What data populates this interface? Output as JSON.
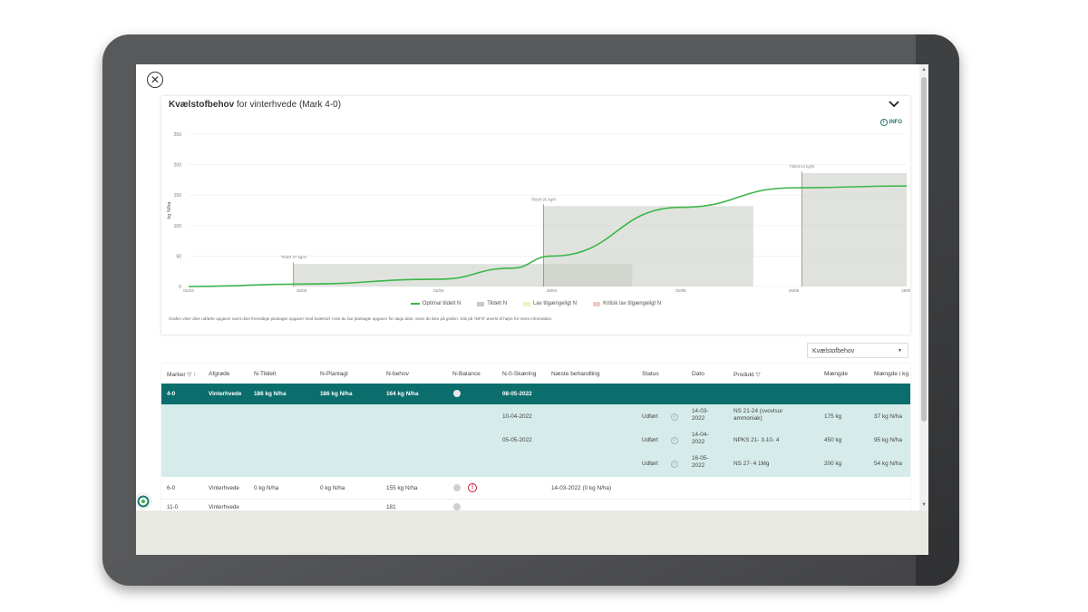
{
  "card": {
    "title_bold": "Kvælstofbehov",
    "title_rest": " for vinterhvede (Mark 4-0)",
    "info_label": "INFO",
    "footnote": "Grafen viser dine udførte opgaver samt dine fremtidige planlagte opgaver med kvælstof. Hvis du har planlagte opgaver for dags dato, vises de ikke på grafen. Klik på 'INFO' øverst til højre for mere information."
  },
  "chart_data": {
    "type": "line",
    "ylabel": "kg N/ha",
    "ylim": [
      0,
      250
    ],
    "yticks": [
      "0",
      "50",
      "100",
      "150",
      "200",
      "250"
    ],
    "x_ticks": [
      "01/03",
      "15/03",
      "01/04",
      "15/04",
      "01/05",
      "15/05",
      "29/05"
    ],
    "series": [
      {
        "name": "Optimal tildelt N",
        "x": [
          "01/03",
          "15/03",
          "01/04",
          "10/04",
          "15/04",
          "01/05",
          "15/05",
          "29/05"
        ],
        "y": [
          0,
          4,
          12,
          30,
          50,
          130,
          162,
          165
        ]
      }
    ],
    "annotations": [
      {
        "x": "14/03",
        "text": "Tildelt 37 kg/N",
        "value": 37
      },
      {
        "x": "14/04",
        "text": "Tildelt 95 kg/N",
        "value": 132
      },
      {
        "x": "16/05",
        "text": "Tildelt 54 kg/N",
        "value": 186
      }
    ],
    "legend": [
      "Optimal tildelt N",
      "Tildelt N",
      "Lav tilgængeligt N",
      "Kritisk lav tilgængeligt N"
    ],
    "colors": {
      "line": "#3bb54a",
      "tildelt": "#c7ccc1",
      "lav": "#f3efc5",
      "kritisk": "#f2c8c2"
    }
  },
  "dropdown": {
    "value": "Kvælstofbehov"
  },
  "table": {
    "headers": {
      "marker": "Marker",
      "afgrode": "Afgrøde",
      "ntildelt": "N-Tildelt",
      "nplanlagt": "N-Planlagt",
      "nbehov": "N-behov",
      "nbalance": "N-Balance",
      "nskaering": "N-0-Skæring",
      "naeste": "Næste behandling",
      "status": "Status",
      "dato": "Dato",
      "produkt": "Produkt",
      "maengde": "Mængde",
      "maengde_kg": "Mængde i kg"
    },
    "selected": {
      "marker": "4-0",
      "afgrode": "Vinterhvede",
      "ntildelt": "186 kg N/ha",
      "nplanlagt": "186 kg N/ha",
      "nbehov": "164 kg N/ha",
      "nskaering": "08-05-2022"
    },
    "details": [
      {
        "nskaering": "10-04-2022",
        "status": "Udført",
        "dato": "14-03-2022",
        "produkt": "NS 21-24 (svovlsur ammoniak)",
        "maengde": "175 kg",
        "maengde_kg": "37 kg N/ha"
      },
      {
        "nskaering": "05-05-2022",
        "status": "Udført",
        "dato": "14-04-2022",
        "produkt": "NPKS 21- 3-10- 4",
        "maengde": "450 kg",
        "maengde_kg": "95 kg N/ha"
      },
      {
        "nskaering": "",
        "status": "Udført",
        "dato": "16-05-2022",
        "produkt": "NS 27- 4 1Mg",
        "maengde": "200 kg",
        "maengde_kg": "54 kg N/ha"
      }
    ],
    "rows": [
      {
        "marker": "6-0",
        "afgrode": "Vinterhvede",
        "ntildelt": "0 kg N/ha",
        "nplanlagt": "0 kg N/ha",
        "nbehov": "155 kg N/ha",
        "naeste": "14-03-2022 (0 kg N/ha)"
      },
      {
        "marker": "11-0",
        "afgrode": "Vinterhvede",
        "ntildelt": "",
        "nplanlagt": "",
        "nbehov": "181",
        "naeste": ""
      }
    ]
  }
}
